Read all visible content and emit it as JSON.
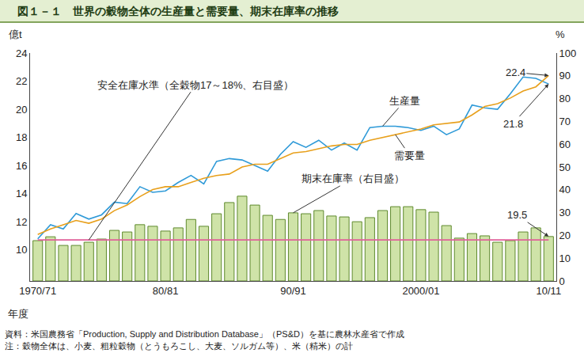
{
  "chart_data": {
    "type": "combo",
    "title": "図１－１　世界の穀物全体の生産量と需要量、期末在庫率の推移",
    "x_label": "年度",
    "y_label": "億t",
    "y2_label": "%",
    "categories": [
      "1970/71",
      null,
      null,
      null,
      null,
      null,
      null,
      null,
      null,
      null,
      "80/81",
      null,
      null,
      null,
      null,
      null,
      null,
      null,
      null,
      null,
      "90/91",
      null,
      null,
      null,
      null,
      null,
      null,
      null,
      null,
      null,
      "2000/01",
      null,
      null,
      null,
      null,
      null,
      null,
      null,
      null,
      null,
      "10/11"
    ],
    "ylim": [
      7.8,
      24
    ],
    "yticks": [
      10,
      12,
      14,
      16,
      18,
      20,
      22,
      24
    ],
    "y2lim": [
      0,
      100
    ],
    "y2ticks": [
      0,
      10,
      20,
      30,
      40,
      50,
      60,
      70,
      80,
      90,
      100
    ],
    "grid": false,
    "series": [
      {
        "name": "期末在庫率（右目盛）",
        "type": "bar",
        "axis": "y2",
        "color": "#cfe3a8",
        "values": [
          17.7,
          19.4,
          15.6,
          15.6,
          17.0,
          18.4,
          22.2,
          21.5,
          24.7,
          24.0,
          21.9,
          23.3,
          27.0,
          24.0,
          29.5,
          34.4,
          37.2,
          33.3,
          28.8,
          27.0,
          29.9,
          29.5,
          30.9,
          28.5,
          28.1,
          26.0,
          27.8,
          30.9,
          32.6,
          32.6,
          31.3,
          30.2,
          24.3,
          18.8,
          20.8,
          19.8,
          17.0,
          17.7,
          21.5,
          23.3,
          19.5
        ],
        "value_labels": [
          null,
          null,
          null,
          null,
          null,
          null,
          null,
          null,
          null,
          null,
          null,
          null,
          null,
          null,
          null,
          null,
          null,
          null,
          null,
          null,
          null,
          null,
          null,
          null,
          null,
          null,
          null,
          null,
          null,
          null,
          null,
          null,
          null,
          null,
          null,
          null,
          null,
          null,
          null,
          null,
          "19.5"
        ]
      },
      {
        "name": "安全在庫水準（全穀物17～18%、右目盛）",
        "type": "line",
        "axis": "y2",
        "color": "#e0609a",
        "values": [
          18,
          18,
          18,
          18,
          18,
          18,
          18,
          18,
          18,
          18,
          18,
          18,
          18,
          18,
          18,
          18,
          18,
          18,
          18,
          18,
          18,
          18,
          18,
          18,
          18,
          18,
          18,
          18,
          18,
          18,
          18,
          18,
          18,
          18,
          18,
          18,
          18,
          18,
          18,
          18,
          18
        ]
      },
      {
        "name": "生産量",
        "type": "line",
        "color": "#2f9ad8",
        "values": [
          10.8,
          11.8,
          11.5,
          12.6,
          12.2,
          12.5,
          13.4,
          13.3,
          14.5,
          14.1,
          14.2,
          14.8,
          15.3,
          14.7,
          16.3,
          16.5,
          16.4,
          16.0,
          15.6,
          16.8,
          17.7,
          17.3,
          17.8,
          17.1,
          17.6,
          17.1,
          18.7,
          18.8,
          18.8,
          18.7,
          18.5,
          18.8,
          18.2,
          18.6,
          20.3,
          20.1,
          20.0,
          21.1,
          22.3,
          22.2,
          21.8
        ],
        "value_labels": [
          null,
          null,
          null,
          null,
          null,
          null,
          null,
          null,
          null,
          null,
          null,
          null,
          null,
          null,
          null,
          null,
          null,
          null,
          null,
          null,
          null,
          null,
          null,
          null,
          null,
          null,
          null,
          null,
          null,
          null,
          null,
          null,
          null,
          null,
          null,
          null,
          null,
          null,
          null,
          null,
          "21.8"
        ]
      },
      {
        "name": "需要量",
        "type": "line",
        "color": "#e8a01c",
        "values": [
          11.1,
          11.5,
          11.8,
          12.1,
          11.9,
          12.2,
          12.8,
          13.2,
          13.8,
          14.3,
          14.5,
          14.5,
          14.8,
          15.1,
          15.3,
          15.4,
          15.9,
          16.1,
          16.1,
          16.5,
          16.9,
          17.0,
          17.2,
          17.4,
          17.5,
          17.5,
          17.8,
          18.0,
          18.2,
          18.4,
          18.6,
          18.9,
          19.0,
          19.1,
          19.6,
          20.2,
          20.4,
          20.8,
          21.3,
          21.6,
          22.4
        ],
        "value_labels": [
          null,
          null,
          null,
          null,
          null,
          null,
          null,
          null,
          null,
          null,
          null,
          null,
          null,
          null,
          null,
          null,
          null,
          null,
          null,
          null,
          null,
          null,
          null,
          null,
          null,
          null,
          null,
          null,
          null,
          null,
          null,
          null,
          null,
          null,
          null,
          null,
          null,
          null,
          null,
          null,
          "22.4"
        ]
      }
    ],
    "notes": [
      "資料：米国農務省「Production, Supply and Distribution Database」（PS&D）を基に農林水産省で作成",
      "注：穀物全体は、小麦、粗粒穀物（とうもろこし、大麦、ソルガム等）、米（精米）の計"
    ]
  }
}
